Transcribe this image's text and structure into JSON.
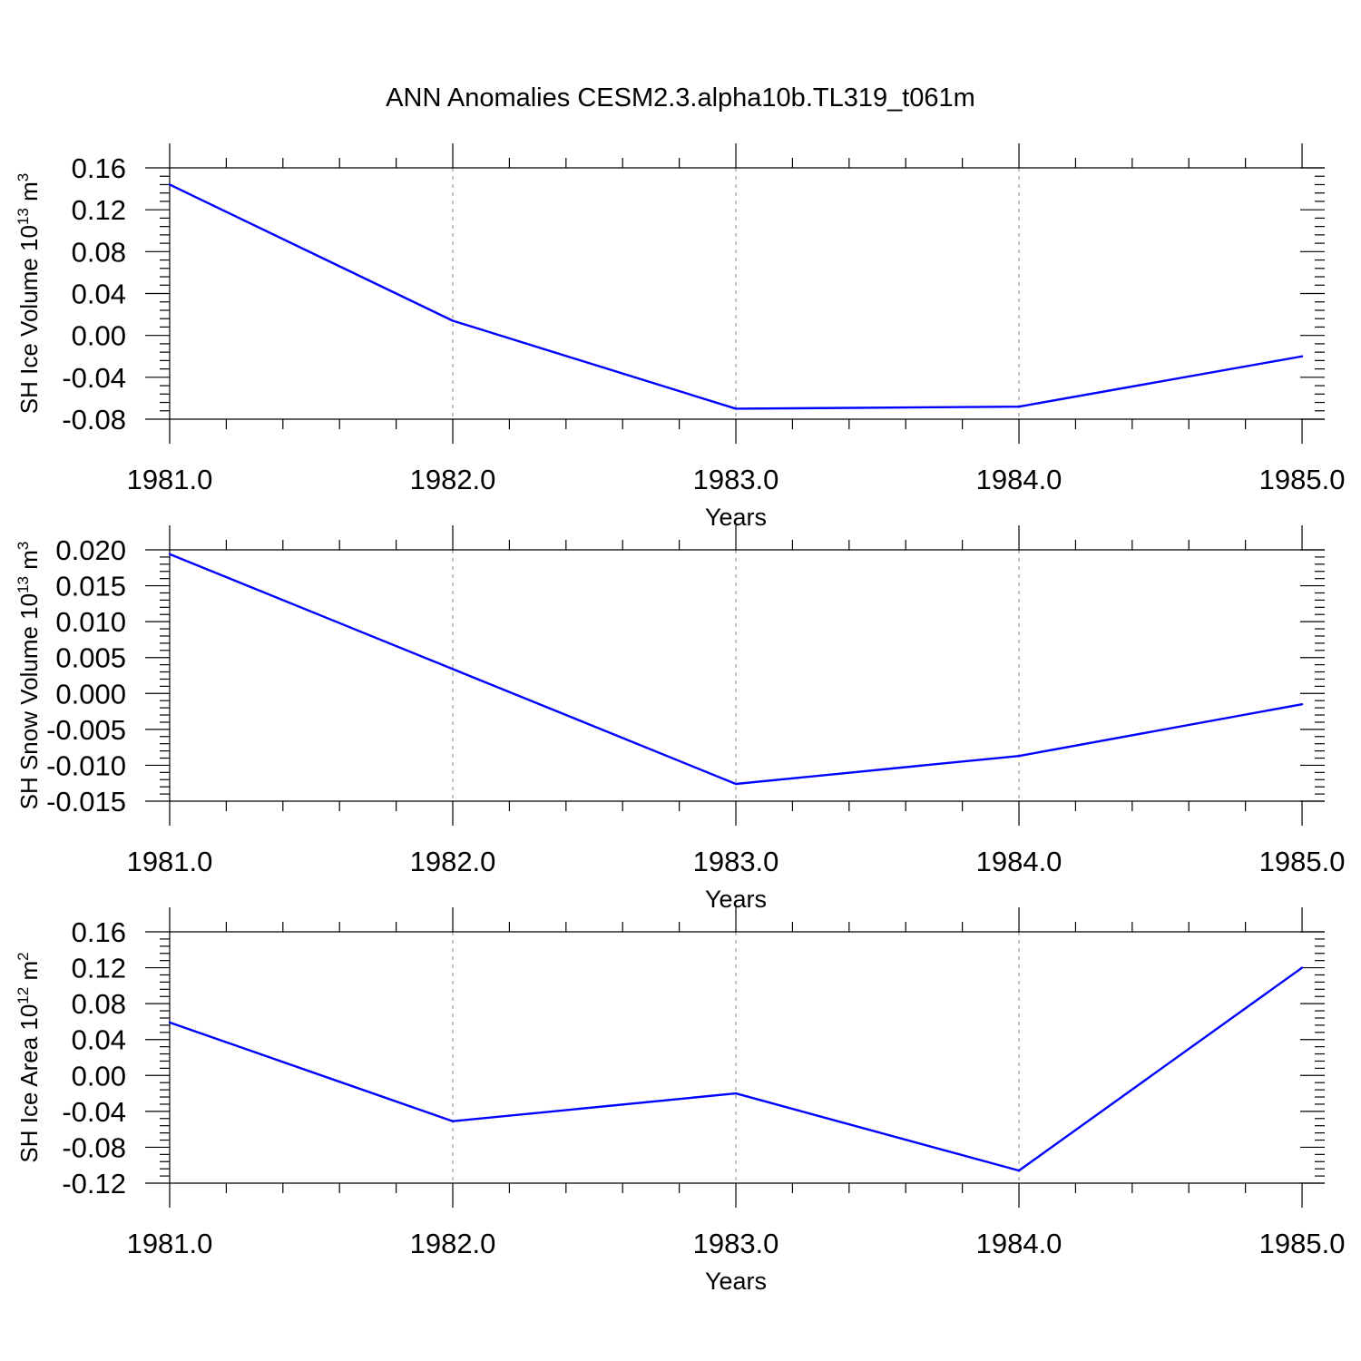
{
  "title": "ANN Anomalies CESM2.3.alpha10b.TL319_t061m",
  "colors": {
    "line": "#0000ff",
    "axis": "#000000",
    "grid": "#888888"
  },
  "chart_data": [
    {
      "type": "line",
      "xlabel": "Years",
      "ylabel": {
        "text": "SH Ice Volume 10",
        "exp": "13",
        "unit": " m",
        "unit_exp": "3"
      },
      "xlim": [
        1981.0,
        1985.08
      ],
      "ylim": [
        -0.08,
        0.16
      ],
      "xticks": [
        "1981.0",
        "1982.0",
        "1983.0",
        "1984.0",
        "1985.0"
      ],
      "yticks": [
        "0.16",
        "0.12",
        "0.08",
        "0.04",
        "0.00",
        "-0.04",
        "-0.08"
      ],
      "grid": "vertical dashed at major x ticks",
      "x": [
        1981.0,
        1982.0,
        1983.0,
        1984.0,
        1985.0
      ],
      "values": [
        0.144,
        0.014,
        -0.07,
        -0.068,
        -0.02
      ]
    },
    {
      "type": "line",
      "xlabel": "Years",
      "ylabel": {
        "text": "SH Snow Volume 10",
        "exp": "13",
        "unit": " m",
        "unit_exp": "3"
      },
      "xlim": [
        1981.0,
        1985.08
      ],
      "ylim": [
        -0.015,
        0.02
      ],
      "xticks": [
        "1981.0",
        "1982.0",
        "1983.0",
        "1984.0",
        "1985.0"
      ],
      "yticks": [
        "0.020",
        "0.015",
        "0.010",
        "0.005",
        "0.000",
        "-0.005",
        "-0.010",
        "-0.015"
      ],
      "grid": "vertical dashed at major x ticks",
      "x": [
        1981.0,
        1982.0,
        1983.0,
        1984.0,
        1985.0
      ],
      "values": [
        0.0194,
        0.0034,
        -0.0126,
        -0.0087,
        -0.0015
      ]
    },
    {
      "type": "line",
      "xlabel": "Years",
      "ylabel": {
        "text": "SH Ice Area 10",
        "exp": "12",
        "unit": " m",
        "unit_exp": "2"
      },
      "xlim": [
        1981.0,
        1985.08
      ],
      "ylim": [
        -0.12,
        0.16
      ],
      "xticks": [
        "1981.0",
        "1982.0",
        "1983.0",
        "1984.0",
        "1985.0"
      ],
      "yticks": [
        "0.16",
        "0.12",
        "0.08",
        "0.04",
        "0.00",
        "-0.04",
        "-0.08",
        "-0.12"
      ],
      "grid": "vertical dashed at major x ticks",
      "x": [
        1981.0,
        1982.0,
        1983.0,
        1984.0,
        1985.0
      ],
      "values": [
        0.059,
        -0.051,
        -0.02,
        -0.106,
        0.12
      ]
    }
  ]
}
